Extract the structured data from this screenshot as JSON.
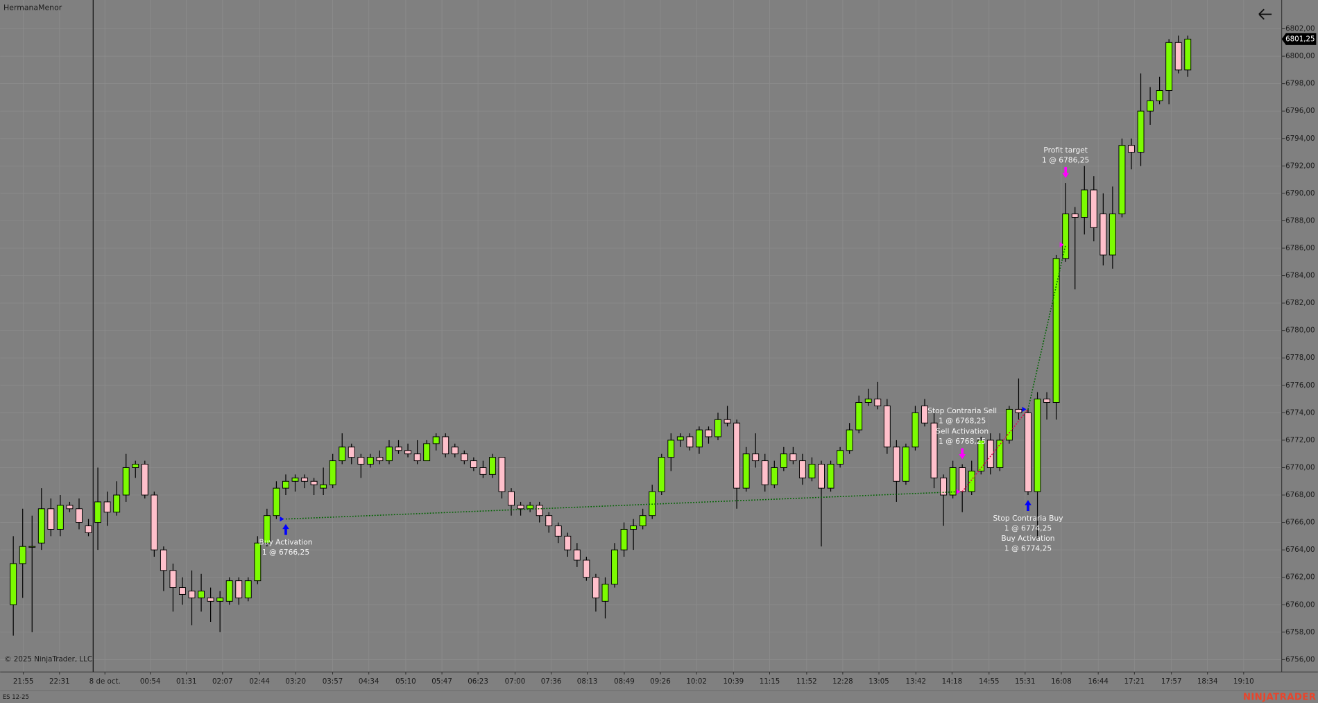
{
  "header": {
    "title": "HermanaMenor"
  },
  "footer": {
    "copyright": "© 2025 NinjaTrader, LLC",
    "brand": "NINJATRADER"
  },
  "chart_data": {
    "type": "candlestick",
    "instrument": "ES 12-25",
    "up_color": "#7cfc00",
    "down_color": "#ffc0cb",
    "buy_color": "#0000ff",
    "sell_color": "#ff00ff",
    "long_line_color": "#006400",
    "short_line_color": "#e0004a",
    "grid": true,
    "xlim": [
      -1.4,
      135
    ],
    "xticks": [
      {
        "value": 1.07,
        "label": "21:55"
      },
      {
        "value": 4.92,
        "label": "22:31"
      },
      {
        "value": 9.75,
        "label": "8 de oct."
      },
      {
        "value": 14.58,
        "label": "00:54"
      },
      {
        "value": 18.43,
        "label": "01:31"
      },
      {
        "value": 22.27,
        "label": "02:07"
      },
      {
        "value": 26.21,
        "label": "02:44"
      },
      {
        "value": 30.05,
        "label": "03:20"
      },
      {
        "value": 33.99,
        "label": "03:57"
      },
      {
        "value": 37.84,
        "label": "04:34"
      },
      {
        "value": 41.77,
        "label": "05:10"
      },
      {
        "value": 45.62,
        "label": "05:47"
      },
      {
        "value": 49.46,
        "label": "06:23"
      },
      {
        "value": 53.4,
        "label": "07:00"
      },
      {
        "value": 57.25,
        "label": "07:36"
      },
      {
        "value": 61.09,
        "label": "08:13"
      },
      {
        "value": 65.03,
        "label": "08:49"
      },
      {
        "value": 68.87,
        "label": "09:26"
      },
      {
        "value": 72.72,
        "label": "10:02"
      },
      {
        "value": 76.65,
        "label": "10:39"
      },
      {
        "value": 80.5,
        "label": "11:15"
      },
      {
        "value": 84.44,
        "label": "11:52"
      },
      {
        "value": 88.28,
        "label": "12:28"
      },
      {
        "value": 92.13,
        "label": "13:05"
      },
      {
        "value": 96.06,
        "label": "13:42"
      },
      {
        "value": 99.91,
        "label": "14:18"
      },
      {
        "value": 103.85,
        "label": "14:55"
      },
      {
        "value": 107.69,
        "label": "15:31"
      },
      {
        "value": 111.54,
        "label": "16:08"
      },
      {
        "value": 115.47,
        "label": "16:44"
      },
      {
        "value": 119.32,
        "label": "17:21"
      },
      {
        "value": 123.26,
        "label": "17:57"
      },
      {
        "value": 127.1,
        "label": "18:34"
      },
      {
        "value": 130.95,
        "label": "19:10"
      }
    ],
    "session_break": 8.5,
    "ylim": [
      6755.1,
      6804.1
    ],
    "yticks": [
      {
        "value": 6756,
        "label": "6756,00"
      },
      {
        "value": 6758,
        "label": "6758,00"
      },
      {
        "value": 6760,
        "label": "6760,00"
      },
      {
        "value": 6762,
        "label": "6762,00"
      },
      {
        "value": 6764,
        "label": "6764,00"
      },
      {
        "value": 6766,
        "label": "6766,00"
      },
      {
        "value": 6768,
        "label": "6768,00"
      },
      {
        "value": 6770,
        "label": "6770,00"
      },
      {
        "value": 6772,
        "label": "6772,00"
      },
      {
        "value": 6774,
        "label": "6774,00"
      },
      {
        "value": 6776,
        "label": "6776,00"
      },
      {
        "value": 6778,
        "label": "6778,00"
      },
      {
        "value": 6780,
        "label": "6780,00"
      },
      {
        "value": 6782,
        "label": "6782,00"
      },
      {
        "value": 6784,
        "label": "6784,00"
      },
      {
        "value": 6786,
        "label": "6786,00"
      },
      {
        "value": 6788,
        "label": "6788,00"
      },
      {
        "value": 6790,
        "label": "6790,00"
      },
      {
        "value": 6792,
        "label": "6792,00"
      },
      {
        "value": 6794,
        "label": "6794,00"
      },
      {
        "value": 6796,
        "label": "6796,00"
      },
      {
        "value": 6798,
        "label": "6798,00"
      },
      {
        "value": 6800,
        "label": "6800,00"
      },
      {
        "value": 6802,
        "label": "6802,00"
      }
    ],
    "open": [
      6760,
      6763,
      6764.25,
      6764.5,
      6767,
      6765.5,
      6767.25,
      6767,
      6765.75,
      6766,
      6767.5,
      6766.75,
      6768,
      6770,
      6770.25,
      6768,
      6764,
      6762.5,
      6761.25,
      6761,
      6760.5,
      6760.5,
      6760.25,
      6760.25,
      6761.75,
      6760.5,
      6761.75,
      6764.5,
      6766.5,
      6768.5,
      6769,
      6769.25,
      6769,
      6768.5,
      6768.75,
      6770.5,
      6771.5,
      6770.75,
      6770.25,
      6770.75,
      6770.5,
      6771.5,
      6771.25,
      6771,
      6770.5,
      6771.75,
      6772.25,
      6771.5,
      6771,
      6770.5,
      6770,
      6769.5,
      6770.75,
      6768.25,
      6767.25,
      6767,
      6767.25,
      6766.5,
      6765.75,
      6765,
      6764,
      6763.25,
      6762,
      6760.25,
      6761.5,
      6764,
      6765.5,
      6765.75,
      6766.5,
      6768.25,
      6770.75,
      6772,
      6772.25,
      6771.5,
      6772.75,
      6772.25,
      6773.5,
      6773.25,
      6768.5,
      6771,
      6770.5,
      6768.75,
      6770,
      6771,
      6770.5,
      6769.25,
      6770.25,
      6768.5,
      6770.25,
      6771.25,
      6772.75,
      6774.75,
      6775,
      6774.5,
      6771.5,
      6769,
      6771.5,
      6774.5,
      6773.25,
      6769.25,
      6768,
      6770,
      6768.25,
      6769.75,
      6772,
      6770,
      6772,
      6774.25,
      6774,
      6768.25,
      6775,
      6774.75,
      6785.25,
      6788.5,
      6788.25,
      6790.25,
      6788.5,
      6785.5,
      6788.5,
      6793.5,
      6793,
      6796,
      6796.75,
      6797.5,
      6801,
      6799
    ],
    "high": [
      6765,
      6767,
      6766.5,
      6768.5,
      6767.75,
      6768,
      6767.5,
      6767.75,
      6766.25,
      6770,
      6768.25,
      6769,
      6771,
      6770.5,
      6770.5,
      6768.25,
      6764.25,
      6763,
      6762,
      6762.5,
      6762.25,
      6761.25,
      6761,
      6762,
      6762,
      6762,
      6765,
      6767,
      6769,
      6769.5,
      6769.5,
      6769.5,
      6769.25,
      6770,
      6771,
      6772.5,
      6771.75,
      6771,
      6771,
      6771.25,
      6772,
      6772,
      6771.75,
      6772,
      6772,
      6772.5,
      6772.5,
      6771.75,
      6771.25,
      6770.75,
      6770.5,
      6771,
      6770.75,
      6768.5,
      6767.5,
      6767.5,
      6767.5,
      6766.75,
      6766,
      6765.25,
      6764.5,
      6763.5,
      6762.25,
      6762,
      6764.5,
      6766,
      6766.25,
      6767,
      6768.75,
      6771,
      6772.5,
      6772.5,
      6772.5,
      6773,
      6773,
      6774,
      6774.5,
      6773.5,
      6771.5,
      6772.5,
      6771,
      6770.5,
      6771.5,
      6771.5,
      6771,
      6770.75,
      6770.5,
      6770.5,
      6771.5,
      6773.25,
      6775.25,
      6775.75,
      6776.25,
      6775,
      6772,
      6771.75,
      6774.5,
      6775,
      6774,
      6769.5,
      6770.5,
      6770.25,
      6770.5,
      6772.25,
      6772.5,
      6772.5,
      6774.5,
      6776.5,
      6774.25,
      6775.5,
      6775.5,
      6785.5,
      6790.75,
      6789,
      6792,
      6791.25,
      6790,
      6790.5,
      6794,
      6794,
      6798.75,
      6797.75,
      6798.5,
      6801.25,
      6801.5,
      6801.5
    ],
    "low": [
      6757.75,
      6760.5,
      6758,
      6764,
      6765,
      6765,
      6766.75,
      6765.5,
      6765,
      6764,
      6765.75,
      6766.5,
      6767.5,
      6769.25,
      6767.75,
      6763.5,
      6761,
      6759.5,
      6760,
      6758.5,
      6759.5,
      6758.75,
      6758,
      6760,
      6760,
      6760.25,
      6761.5,
      6764.25,
      6766.25,
      6768,
      6768.25,
      6768.5,
      6768,
      6768,
      6768.5,
      6770.25,
      6770.25,
      6769.25,
      6770,
      6770.25,
      6770.25,
      6771,
      6770.75,
      6770.25,
      6770.5,
      6771.25,
      6770.75,
      6770.75,
      6770.25,
      6769.75,
      6769.25,
      6769.25,
      6767.75,
      6766.5,
      6766.5,
      6766.75,
      6766,
      6765.25,
      6764.5,
      6763.5,
      6762.75,
      6761.75,
      6759.5,
      6759,
      6761.25,
      6763.5,
      6764,
      6765.5,
      6766.25,
      6768,
      6769.75,
      6771.5,
      6771.25,
      6771,
      6771.75,
      6772,
      6773,
      6767,
      6768.25,
      6770,
      6768.25,
      6768.5,
      6769.75,
      6770.25,
      6768.75,
      6769,
      6764.25,
      6768.25,
      6770,
      6771,
      6772.5,
      6774.5,
      6774.25,
      6771,
      6767.5,
      6768.75,
      6771.25,
      6773,
      6768.5,
      6765.75,
      6767.75,
      6766.75,
      6768,
      6769.5,
      6769.5,
      6769.75,
      6771.75,
      6773.5,
      6768,
      6764.75,
      6773.5,
      6773.5,
      6785,
      6783,
      6787,
      6786.5,
      6784.75,
      6784.5,
      6788.25,
      6791.75,
      6792,
      6795,
      6796.5,
      6796.5,
      6798.75,
      6798.5
    ],
    "close": [
      6763,
      6764.25,
      6764.25,
      6767,
      6765.5,
      6767.25,
      6767,
      6766,
      6765.25,
      6767.5,
      6766.75,
      6768,
      6770,
      6770.25,
      6768,
      6764,
      6762.5,
      6761.25,
      6760.75,
      6760.5,
      6761,
      6760.25,
      6760.5,
      6761.75,
      6760.5,
      6761.75,
      6764.5,
      6766.5,
      6768.5,
      6769,
      6769.25,
      6769,
      6768.75,
      6768.75,
      6770.5,
      6771.5,
      6770.75,
      6770.25,
      6770.75,
      6770.5,
      6771.5,
      6771.25,
      6771,
      6770.5,
      6771.75,
      6772.25,
      6771,
      6771,
      6770.5,
      6770,
      6769.5,
      6770.75,
      6768.25,
      6767.25,
      6767,
      6767.25,
      6766.5,
      6765.75,
      6765,
      6764,
      6763.25,
      6762,
      6760.5,
      6761.5,
      6764,
      6765.5,
      6765.75,
      6766.5,
      6768.25,
      6770.75,
      6772,
      6772.25,
      6771.5,
      6772.75,
      6772.25,
      6773.5,
      6773.25,
      6768.5,
      6771,
      6770.5,
      6768.75,
      6770,
      6771,
      6770.5,
      6769.25,
      6770.25,
      6768.5,
      6770.25,
      6771.25,
      6772.75,
      6774.75,
      6775,
      6774.5,
      6771.5,
      6769,
      6771.5,
      6774,
      6773.25,
      6769.25,
      6768,
      6770,
      6768.25,
      6769.75,
      6772,
      6770,
      6772,
      6774.25,
      6774,
      6768.25,
      6775,
      6774.75,
      6785.25,
      6788.5,
      6788.25,
      6790.25,
      6787.5,
      6785.5,
      6788.5,
      6793.5,
      6793,
      6796,
      6796.75,
      6797.5,
      6801,
      6799,
      6801.25
    ],
    "last_price": {
      "value": 6801.25,
      "label": "6801,25"
    },
    "executions": [
      {
        "x": 29,
        "price": 6766.25,
        "side": "buy",
        "orders": [
          {
            "name": "Buy Activation",
            "label": "1 @ 6766,25"
          }
        ]
      },
      {
        "x": 101,
        "price": 6768.25,
        "side": "sell",
        "orders": [
          {
            "name": "Stop Contraria Sell",
            "label": "1 @ 6768,25"
          },
          {
            "name": "Sell Activation",
            "label": "1 @ 6768,25"
          }
        ]
      },
      {
        "x": 108,
        "price": 6774.25,
        "side": "buy",
        "orders": [
          {
            "name": "Stop Contraria Buy",
            "label": "1 @ 6774,25"
          },
          {
            "name": "Buy Activation",
            "label": "1 @ 6774,25"
          }
        ]
      },
      {
        "x": 112,
        "price": 6786.25,
        "side": "sell",
        "orders": [
          {
            "name": "Profit target",
            "label": "1 @ 6786,25"
          }
        ]
      }
    ]
  }
}
